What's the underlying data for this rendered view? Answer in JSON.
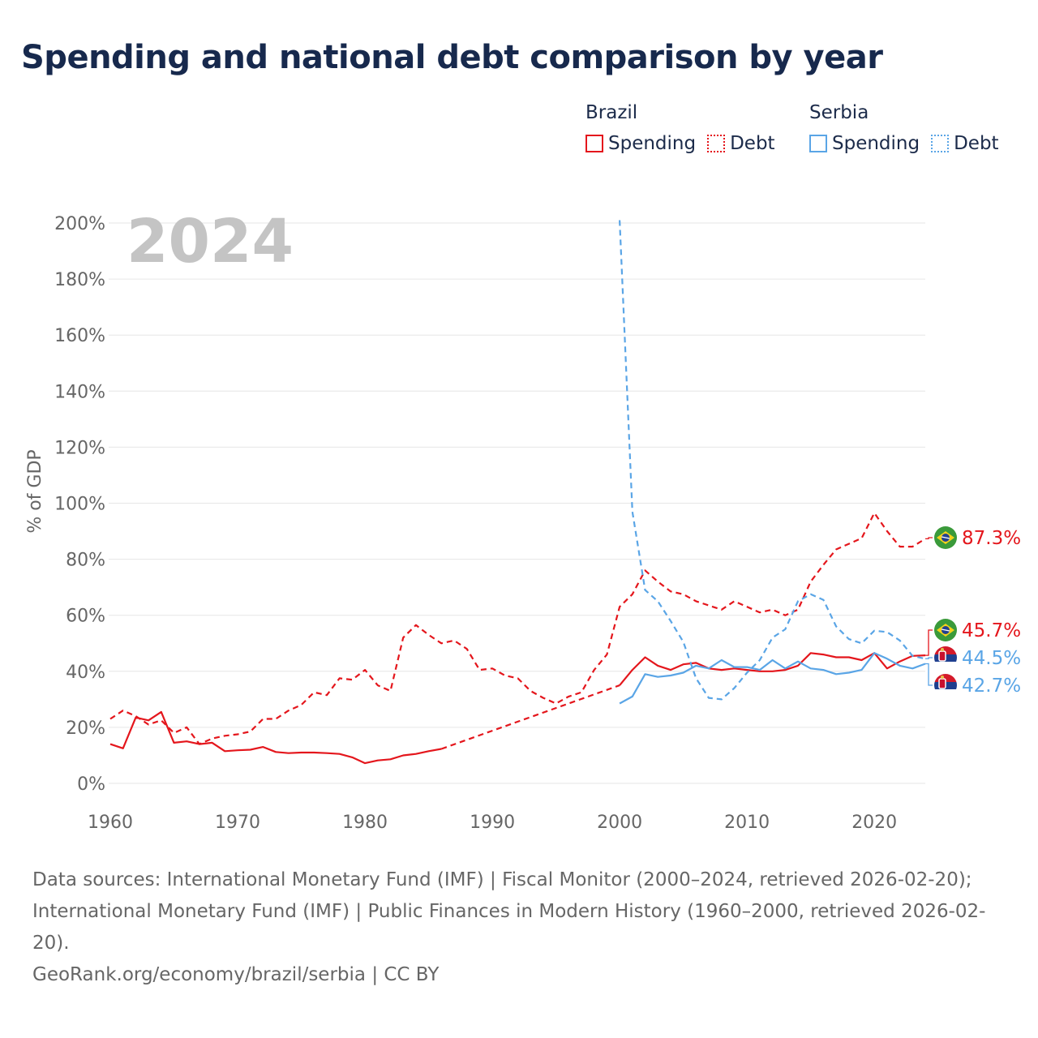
{
  "title": "Spending and national debt comparison by year",
  "legend": {
    "groups": [
      {
        "name": "Brazil",
        "items": [
          {
            "label": "Spending",
            "style": "solid",
            "color": "#e4161c"
          },
          {
            "label": "Debt",
            "style": "dotted",
            "color": "#e4161c"
          }
        ]
      },
      {
        "name": "Serbia",
        "items": [
          {
            "label": "Spending",
            "style": "solid",
            "color": "#5aa5e6"
          },
          {
            "label": "Debt",
            "style": "dotted",
            "color": "#5aa5e6"
          }
        ]
      }
    ]
  },
  "year_watermark": "2024",
  "sources": {
    "line1": "Data sources: International Monetary Fund (IMF) | Fiscal Monitor (2000–2024, retrieved 2026-02-20); International Monetary Fund (IMF) | Public Finances in Modern History (1960–2000, retrieved 2026-02-20).",
    "line2": "GeoRank.org/economy/brazil/serbia | CC BY"
  },
  "chart_data": {
    "type": "line",
    "title": "Spending and national debt comparison by year",
    "xlabel": "",
    "ylabel": "% of GDP",
    "xlim": [
      1960,
      2024
    ],
    "ylim": [
      0,
      200
    ],
    "x_ticks": [
      1960,
      1970,
      1980,
      1990,
      2000,
      2010,
      2020
    ],
    "y_ticks": [
      0,
      20,
      40,
      60,
      80,
      100,
      120,
      140,
      160,
      180,
      200
    ],
    "y_tick_labels": [
      "0%",
      "20%",
      "40%",
      "60%",
      "80%",
      "100%",
      "120%",
      "140%",
      "160%",
      "180%",
      "200%"
    ],
    "grid": true,
    "series": [
      {
        "name": "Brazil Spending",
        "country": "Brazil",
        "metric": "Spending",
        "color": "#e4161c",
        "dash": "solid",
        "x": [
          1960,
          1961,
          1962,
          1963,
          1964,
          1965,
          1966,
          1967,
          1968,
          1969,
          1970,
          1971,
          1972,
          1973,
          1974,
          1975,
          1976,
          1977,
          1978,
          1979,
          1980,
          1981,
          1982,
          1983,
          1984,
          1985,
          1986,
          1987,
          1988,
          1989,
          1990,
          1991,
          1992,
          1993,
          1994,
          1995,
          1996,
          1997,
          1998,
          1999,
          2000,
          2001,
          2002,
          2003,
          2004,
          2005,
          2006,
          2007,
          2008,
          2009,
          2010,
          2011,
          2012,
          2013,
          2014,
          2015,
          2016,
          2017,
          2018,
          2019,
          2020,
          2021,
          2022,
          2023,
          2024
        ],
        "y": [
          14,
          12.5,
          23.5,
          22.5,
          25.5,
          14.5,
          15,
          14,
          14.5,
          11.5,
          11.8,
          12,
          13,
          11.2,
          10.8,
          11,
          11,
          10.8,
          10.5,
          9.3,
          7.2,
          8.2,
          8.6,
          10,
          10.5,
          11.5,
          12.3,
          null,
          null,
          null,
          null,
          null,
          null,
          null,
          null,
          null,
          null,
          null,
          null,
          null,
          35,
          40.5,
          45,
          42,
          40.5,
          42.5,
          43,
          41,
          40.5,
          41,
          40.5,
          40,
          40,
          40.5,
          42,
          46.5,
          46,
          45,
          45,
          44,
          46.5,
          41,
          43.5,
          45.5,
          45.7
        ]
      },
      {
        "name": "Brazil Debt",
        "country": "Brazil",
        "metric": "Debt",
        "color": "#e4161c",
        "dash": "dashed",
        "x": [
          1960,
          1961,
          1962,
          1963,
          1964,
          1965,
          1966,
          1967,
          1968,
          1969,
          1970,
          1971,
          1972,
          1973,
          1974,
          1975,
          1976,
          1977,
          1978,
          1979,
          1980,
          1981,
          1982,
          1983,
          1984,
          1985,
          1986,
          1987,
          1988,
          1989,
          1990,
          1991,
          1992,
          1993,
          1994,
          1995,
          1996,
          1997,
          1998,
          1999,
          2000,
          2001,
          2002,
          2003,
          2004,
          2005,
          2006,
          2007,
          2008,
          2009,
          2010,
          2011,
          2012,
          2013,
          2014,
          2015,
          2016,
          2017,
          2018,
          2019,
          2020,
          2021,
          2022,
          2023,
          2024
        ],
        "y": [
          23,
          26,
          24,
          21,
          22.5,
          18,
          20,
          14,
          16,
          17,
          17.5,
          18.5,
          23,
          23,
          26,
          28,
          32.5,
          31.5,
          37.5,
          37,
          40.5,
          35,
          33,
          52,
          56.5,
          53,
          50,
          51,
          48,
          40.5,
          41,
          38.5,
          37.5,
          33,
          30.5,
          28.5,
          31,
          32.5,
          40.5,
          46,
          63,
          67.5,
          76,
          72,
          68.5,
          67.5,
          65,
          63.5,
          62,
          65,
          63,
          61,
          62,
          60,
          62,
          72,
          78,
          83.5,
          85.5,
          87.5,
          96.5,
          90,
          84.5,
          84.5,
          87.3
        ]
      },
      {
        "name": "Serbia Spending",
        "country": "Serbia",
        "metric": "Spending",
        "color": "#5aa5e6",
        "dash": "solid",
        "x": [
          2000,
          2001,
          2002,
          2003,
          2004,
          2005,
          2006,
          2007,
          2008,
          2009,
          2010,
          2011,
          2012,
          2013,
          2014,
          2015,
          2016,
          2017,
          2018,
          2019,
          2020,
          2021,
          2022,
          2023,
          2024
        ],
        "y": [
          28.5,
          31,
          39,
          38,
          38.5,
          39.5,
          42,
          41,
          44,
          41.5,
          41.5,
          40.5,
          44,
          41,
          43.5,
          41,
          40.5,
          39,
          39.5,
          40.5,
          46.5,
          44.5,
          42,
          41,
          42.7
        ]
      },
      {
        "name": "Serbia Debt",
        "country": "Serbia",
        "metric": "Debt",
        "color": "#5aa5e6",
        "dash": "dashed",
        "x": [
          2000,
          2001,
          2002,
          2003,
          2004,
          2005,
          2006,
          2007,
          2008,
          2009,
          2010,
          2011,
          2012,
          2013,
          2014,
          2015,
          2016,
          2017,
          2018,
          2019,
          2020,
          2021,
          2022,
          2023,
          2024
        ],
        "y": [
          201,
          97,
          69,
          65,
          58,
          50.5,
          37.5,
          30.5,
          30,
          34,
          39.5,
          44,
          52,
          55,
          65,
          67.5,
          65.5,
          56,
          51.5,
          50,
          54.5,
          54,
          51,
          45.5,
          44.5
        ]
      }
    ],
    "end_labels": [
      {
        "series": "Brazil Debt",
        "country": "Brazil",
        "value": 87.3,
        "label": "87.3%",
        "color": "#e4161c"
      },
      {
        "series": "Brazil Spending",
        "country": "Brazil",
        "value": 45.7,
        "label": "45.7%",
        "color": "#e4161c"
      },
      {
        "series": "Serbia Debt",
        "country": "Serbia",
        "value": 44.5,
        "label": "44.5%",
        "color": "#5aa5e6"
      },
      {
        "series": "Serbia Spending",
        "country": "Serbia",
        "value": 42.7,
        "label": "42.7%",
        "color": "#5aa5e6"
      }
    ]
  }
}
